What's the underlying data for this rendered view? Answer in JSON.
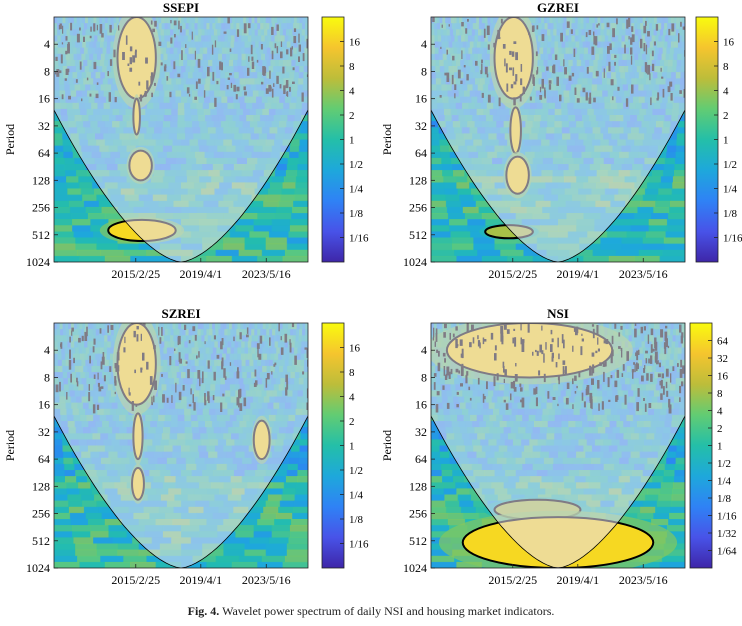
{
  "figure": {
    "caption_label": "Fig. 4.",
    "caption_text": "Wavelet power spectrum of daily NSI and housing market indicators."
  },
  "colors": {
    "cmap": [
      "#3e26a8",
      "#4853e8",
      "#2f82f5",
      "#1ea8db",
      "#24bfa8",
      "#62cc73",
      "#bdbd3a",
      "#f5c52e",
      "#f9fb0e"
    ],
    "contour": "#000000",
    "coi_shade": "#e8e0f2"
  },
  "chart_data": [
    {
      "type": "heatmap",
      "title": "SSEPI",
      "ylabel": "Period",
      "y_ticks": [
        "4",
        "8",
        "16",
        "32",
        "64",
        "128",
        "256",
        "512",
        "1024"
      ],
      "x_ticks": [
        "2015/2/25",
        "2019/4/1",
        "2023/5/16"
      ],
      "colorbar_ticks": [
        "16",
        "8",
        "4",
        "2",
        "1",
        "1/2",
        "1/4",
        "1/8",
        "1/16"
      ],
      "power_range_log2": [
        -5,
        5
      ],
      "high_power_regions": [
        {
          "x_range": [
            "2014/1/1",
            "2016/6/1"
          ],
          "period_range": [
            2,
            16
          ],
          "level": "high"
        },
        {
          "x_range": [
            "2015/1/1",
            "2015/6/1"
          ],
          "period_range": [
            16,
            40
          ],
          "level": "high"
        },
        {
          "x_range": [
            "2014/10/1",
            "2016/3/1"
          ],
          "period_range": [
            60,
            128
          ],
          "level": "high"
        },
        {
          "x_range": [
            "2013/6/1",
            "2017/9/1"
          ],
          "period_range": [
            350,
            600
          ],
          "level": "high"
        }
      ]
    },
    {
      "type": "heatmap",
      "title": "GZREI",
      "ylabel": "Period",
      "y_ticks": [
        "4",
        "8",
        "16",
        "32",
        "64",
        "128",
        "256",
        "512",
        "1024"
      ],
      "x_ticks": [
        "2015/2/25",
        "2019/4/1",
        "2023/5/16"
      ],
      "colorbar_ticks": [
        "16",
        "8",
        "4",
        "2",
        "1",
        "1/2",
        "1/4",
        "1/8",
        "1/16"
      ],
      "power_range_log2": [
        -5,
        5
      ],
      "high_power_regions": [
        {
          "x_range": [
            "2014/1/1",
            "2016/6/1"
          ],
          "period_range": [
            2,
            16
          ],
          "level": "high"
        },
        {
          "x_range": [
            "2015/1/1",
            "2015/9/1"
          ],
          "period_range": [
            20,
            64
          ],
          "level": "high"
        },
        {
          "x_range": [
            "2014/10/1",
            "2016/3/1"
          ],
          "period_range": [
            70,
            180
          ],
          "level": "high"
        },
        {
          "x_range": [
            "2013/6/1",
            "2016/6/1"
          ],
          "period_range": [
            400,
            560
          ],
          "level": "medium"
        }
      ]
    },
    {
      "type": "heatmap",
      "title": "SZREI",
      "ylabel": "Period",
      "y_ticks": [
        "4",
        "8",
        "16",
        "32",
        "64",
        "128",
        "256",
        "512",
        "1024"
      ],
      "x_ticks": [
        "2015/2/25",
        "2019/4/1",
        "2023/5/16"
      ],
      "colorbar_ticks": [
        "16",
        "8",
        "4",
        "2",
        "1",
        "1/2",
        "1/4",
        "1/8",
        "1/16"
      ],
      "power_range_log2": [
        -5,
        5
      ],
      "high_power_regions": [
        {
          "x_range": [
            "2014/1/1",
            "2016/6/1"
          ],
          "period_range": [
            2,
            16
          ],
          "level": "high"
        },
        {
          "x_range": [
            "2015/1/1",
            "2015/8/1"
          ],
          "period_range": [
            20,
            64
          ],
          "level": "high"
        },
        {
          "x_range": [
            "2014/12/1",
            "2015/9/1"
          ],
          "period_range": [
            80,
            180
          ],
          "level": "high"
        },
        {
          "x_range": [
            "2022/8/1",
            "2023/8/1"
          ],
          "period_range": [
            24,
            64
          ],
          "level": "high"
        }
      ]
    },
    {
      "type": "heatmap",
      "title": "NSI",
      "ylabel": "Period",
      "y_ticks": [
        "4",
        "8",
        "16",
        "32",
        "64",
        "128",
        "256",
        "512",
        "1024"
      ],
      "x_ticks": [
        "2015/2/25",
        "2019/4/1",
        "2023/5/16"
      ],
      "colorbar_ticks": [
        "64",
        "32",
        "16",
        "8",
        "4",
        "2",
        "1",
        "1/2",
        "1/4",
        "1/8",
        "1/16",
        "1/32",
        "1/64"
      ],
      "power_range_log2": [
        -7,
        7
      ],
      "high_power_regions": [
        {
          "x_range": [
            "2011/1/1",
            "2021/6/1"
          ],
          "period_range": [
            2,
            8
          ],
          "level": "high"
        },
        {
          "x_range": [
            "2014/1/1",
            "2019/6/1"
          ],
          "period_range": [
            180,
            300
          ],
          "level": "medium"
        },
        {
          "x_range": [
            "2012/1/1",
            "2024/1/1"
          ],
          "period_range": [
            280,
            1024
          ],
          "level": "high"
        }
      ]
    }
  ]
}
